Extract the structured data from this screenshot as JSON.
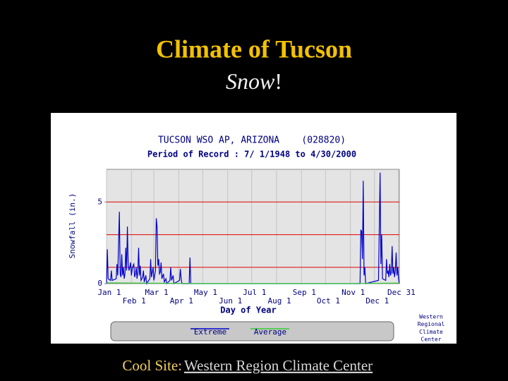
{
  "slide": {
    "title": "Climate of Tucson",
    "subtitle_emphasis": "Snow",
    "subtitle_rest": "!",
    "footer_label": "Cool Site:",
    "footer_link": "Western Region Climate Center"
  },
  "chart_data": {
    "type": "line",
    "title": "TUCSON WSO AP, ARIZONA    (028820)",
    "subtitle": "Period of Record : 7/ 1/1948 to 4/30/2000",
    "ylabel": "Snowfall (in.)",
    "xlabel": "Day of Year",
    "credit": [
      "Western",
      "Regional",
      "Climate",
      "Center"
    ],
    "xlim": [
      1,
      366
    ],
    "ylim": [
      0,
      7
    ],
    "yticks": [
      0,
      5
    ],
    "xticks": [
      {
        "value": 1,
        "label": "Jan 1"
      },
      {
        "value": 32,
        "label": "Feb 1"
      },
      {
        "value": 60,
        "label": "Mar 1"
      },
      {
        "value": 91,
        "label": "Apr 1"
      },
      {
        "value": 121,
        "label": "May 1"
      },
      {
        "value": 152,
        "label": "Jun 1"
      },
      {
        "value": 182,
        "label": "Jul 1"
      },
      {
        "value": 213,
        "label": "Aug 1"
      },
      {
        "value": 244,
        "label": "Sep 1"
      },
      {
        "value": 274,
        "label": "Oct 1"
      },
      {
        "value": 305,
        "label": "Nov 1"
      },
      {
        "value": 335,
        "label": "Dec 1"
      },
      {
        "value": 365,
        "label": "Dec 31"
      }
    ],
    "grid": true,
    "ref_lines": [
      1,
      3,
      5
    ],
    "ref_color": "#e00000",
    "series": [
      {
        "name": "Extreme",
        "color": "#0000cc",
        "x": [
          1,
          2,
          3,
          6,
          7,
          8,
          13,
          14,
          15,
          16,
          17,
          18,
          19,
          20,
          21,
          22,
          23,
          24,
          25,
          26,
          27,
          28,
          29,
          30,
          31,
          32,
          33,
          34,
          35,
          36,
          37,
          38,
          39,
          40,
          41,
          42,
          43,
          44,
          46,
          47,
          48,
          50,
          51,
          55,
          56,
          57,
          59,
          60,
          62,
          63,
          64,
          65,
          66,
          67,
          68,
          69,
          70,
          72,
          73,
          75,
          76,
          80,
          81,
          82,
          84,
          85,
          92,
          93,
          94,
          95,
          104,
          105,
          106,
          317,
          318,
          319,
          320,
          321,
          322,
          323,
          324,
          340,
          341,
          342,
          343,
          344,
          345,
          349,
          350,
          351,
          352,
          353,
          354,
          355,
          356,
          357,
          358,
          359,
          360,
          361,
          362,
          363,
          364,
          365,
          366
        ],
        "values": [
          0,
          2.1,
          0.3,
          0.2,
          0.8,
          0.2,
          0.3,
          1.2,
          0.5,
          2.5,
          4.4,
          0.6,
          0.4,
          1.8,
          0.5,
          1.0,
          0.3,
          0.6,
          2.2,
          0.8,
          3.5,
          1.2,
          0.8,
          1.0,
          1.3,
          0.5,
          0.9,
          1.1,
          1.2,
          0.4,
          0.6,
          1.0,
          0.3,
          0.7,
          2.2,
          0.5,
          1.1,
          0.2,
          0.4,
          0.8,
          0.1,
          0.5,
          0,
          0.3,
          1.5,
          0.4,
          1.0,
          0.2,
          0.8,
          4.0,
          3.5,
          1.1,
          1.5,
          0.6,
          0.7,
          1.3,
          0.3,
          0.6,
          0.1,
          0.3,
          0,
          0.2,
          1.0,
          0.2,
          0.5,
          0,
          0.2,
          0.9,
          0.3,
          0,
          0,
          1.6,
          0,
          0,
          3.3,
          3.2,
          1.5,
          6.3,
          0.5,
          1.0,
          0,
          0.2,
          3.4,
          6.8,
          1.2,
          3.0,
          0.3,
          0.2,
          1.5,
          0.6,
          0.8,
          0.4,
          1.2,
          0.5,
          0.7,
          2.3,
          0.6,
          1.0,
          0.4,
          0.8,
          1.9,
          0.5,
          1.0,
          0.3,
          0
        ]
      },
      {
        "name": "Average",
        "color": "#33cc33",
        "x": [
          1,
          60,
          120,
          300,
          366
        ],
        "values": [
          0.05,
          0.03,
          0,
          0,
          0.04
        ]
      }
    ]
  }
}
